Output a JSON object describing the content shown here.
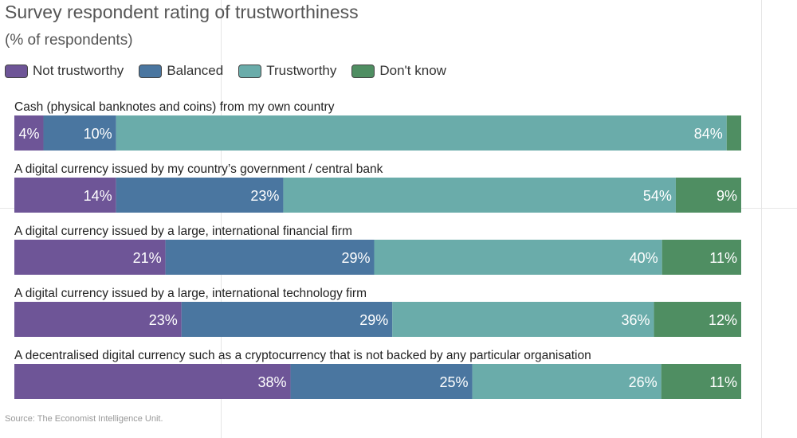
{
  "title": "Survey respondent rating of trustworthiness",
  "subtitle": "(% of respondents)",
  "source": "Source: The Economist Intelligence Unit.",
  "legend": [
    {
      "label": "Not trustworthy",
      "color": "#6e5597"
    },
    {
      "label": "Balanced",
      "color": "#4a76a0"
    },
    {
      "label": "Trustworthy",
      "color": "#6aacaa"
    },
    {
      "label": "Don't know",
      "color": "#4f8e62"
    }
  ],
  "chart_data": {
    "type": "bar",
    "orientation": "horizontal",
    "stacked": true,
    "unit": "%",
    "title": "Survey respondent rating of trustworthiness",
    "subtitle": "(% of respondents)",
    "categories": [
      "Cash (physical banknotes and coins) from my own country",
      "A digital currency issued by my country’s government / central bank",
      "A digital currency issued by a large, international financial firm",
      "A digital currency issued by a large, international technology firm",
      "A decentralised digital currency such as a cryptocurrency that is not backed by any particular organisation"
    ],
    "series": [
      {
        "name": "Not trustworthy",
        "color": "#6e5597",
        "values": [
          4,
          14,
          21,
          23,
          38
        ]
      },
      {
        "name": "Balanced",
        "color": "#4a76a0",
        "values": [
          10,
          23,
          29,
          29,
          25
        ]
      },
      {
        "name": "Trustworthy",
        "color": "#6aacaa",
        "values": [
          84,
          54,
          40,
          36,
          26
        ]
      },
      {
        "name": "Don't know",
        "color": "#4f8e62",
        "values": [
          2,
          9,
          11,
          12,
          11
        ]
      }
    ],
    "data_labels": [
      [
        "4%",
        "10%",
        "84%",
        ""
      ],
      [
        "14%",
        "23%",
        "54%",
        "9%"
      ],
      [
        "21%",
        "29%",
        "40%",
        "11%"
      ],
      [
        "23%",
        "29%",
        "36%",
        "12%"
      ],
      [
        "38%",
        "25%",
        "26%",
        "11%"
      ]
    ],
    "legend_position": "top-left",
    "grid": false
  }
}
